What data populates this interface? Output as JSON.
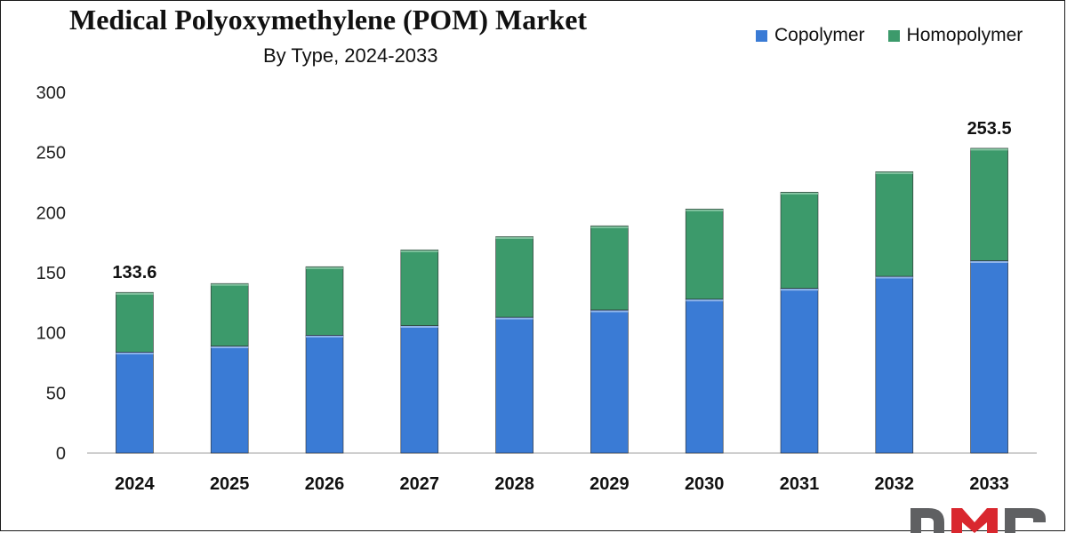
{
  "chart_data": {
    "type": "bar",
    "stacked": true,
    "title": "Medical Polyoxymethylene (POM) Market",
    "subtitle": "By Type, 2024-2033",
    "categories": [
      "2024",
      "2025",
      "2026",
      "2027",
      "2028",
      "2029",
      "2030",
      "2031",
      "2032",
      "2033"
    ],
    "series": [
      {
        "name": "Copolymer",
        "color": "#3a7bd5",
        "values": [
          84,
          89,
          98,
          106,
          113,
          119,
          128,
          137,
          147,
          160
        ]
      },
      {
        "name": "Homopolymer",
        "color": "#3c9a6b",
        "values": [
          49.6,
          52,
          57,
          63,
          67,
          70,
          75,
          80,
          87,
          93.5
        ]
      }
    ],
    "totals_labels": [
      {
        "category": "2024",
        "text": "133.6"
      },
      {
        "category": "2033",
        "text": "253.5"
      }
    ],
    "ylim": [
      0,
      300
    ],
    "yticks": [
      0,
      50,
      100,
      150,
      200,
      250,
      300
    ],
    "grid": false,
    "legend_position": "top-right"
  },
  "logo": {
    "text": "DMR"
  }
}
